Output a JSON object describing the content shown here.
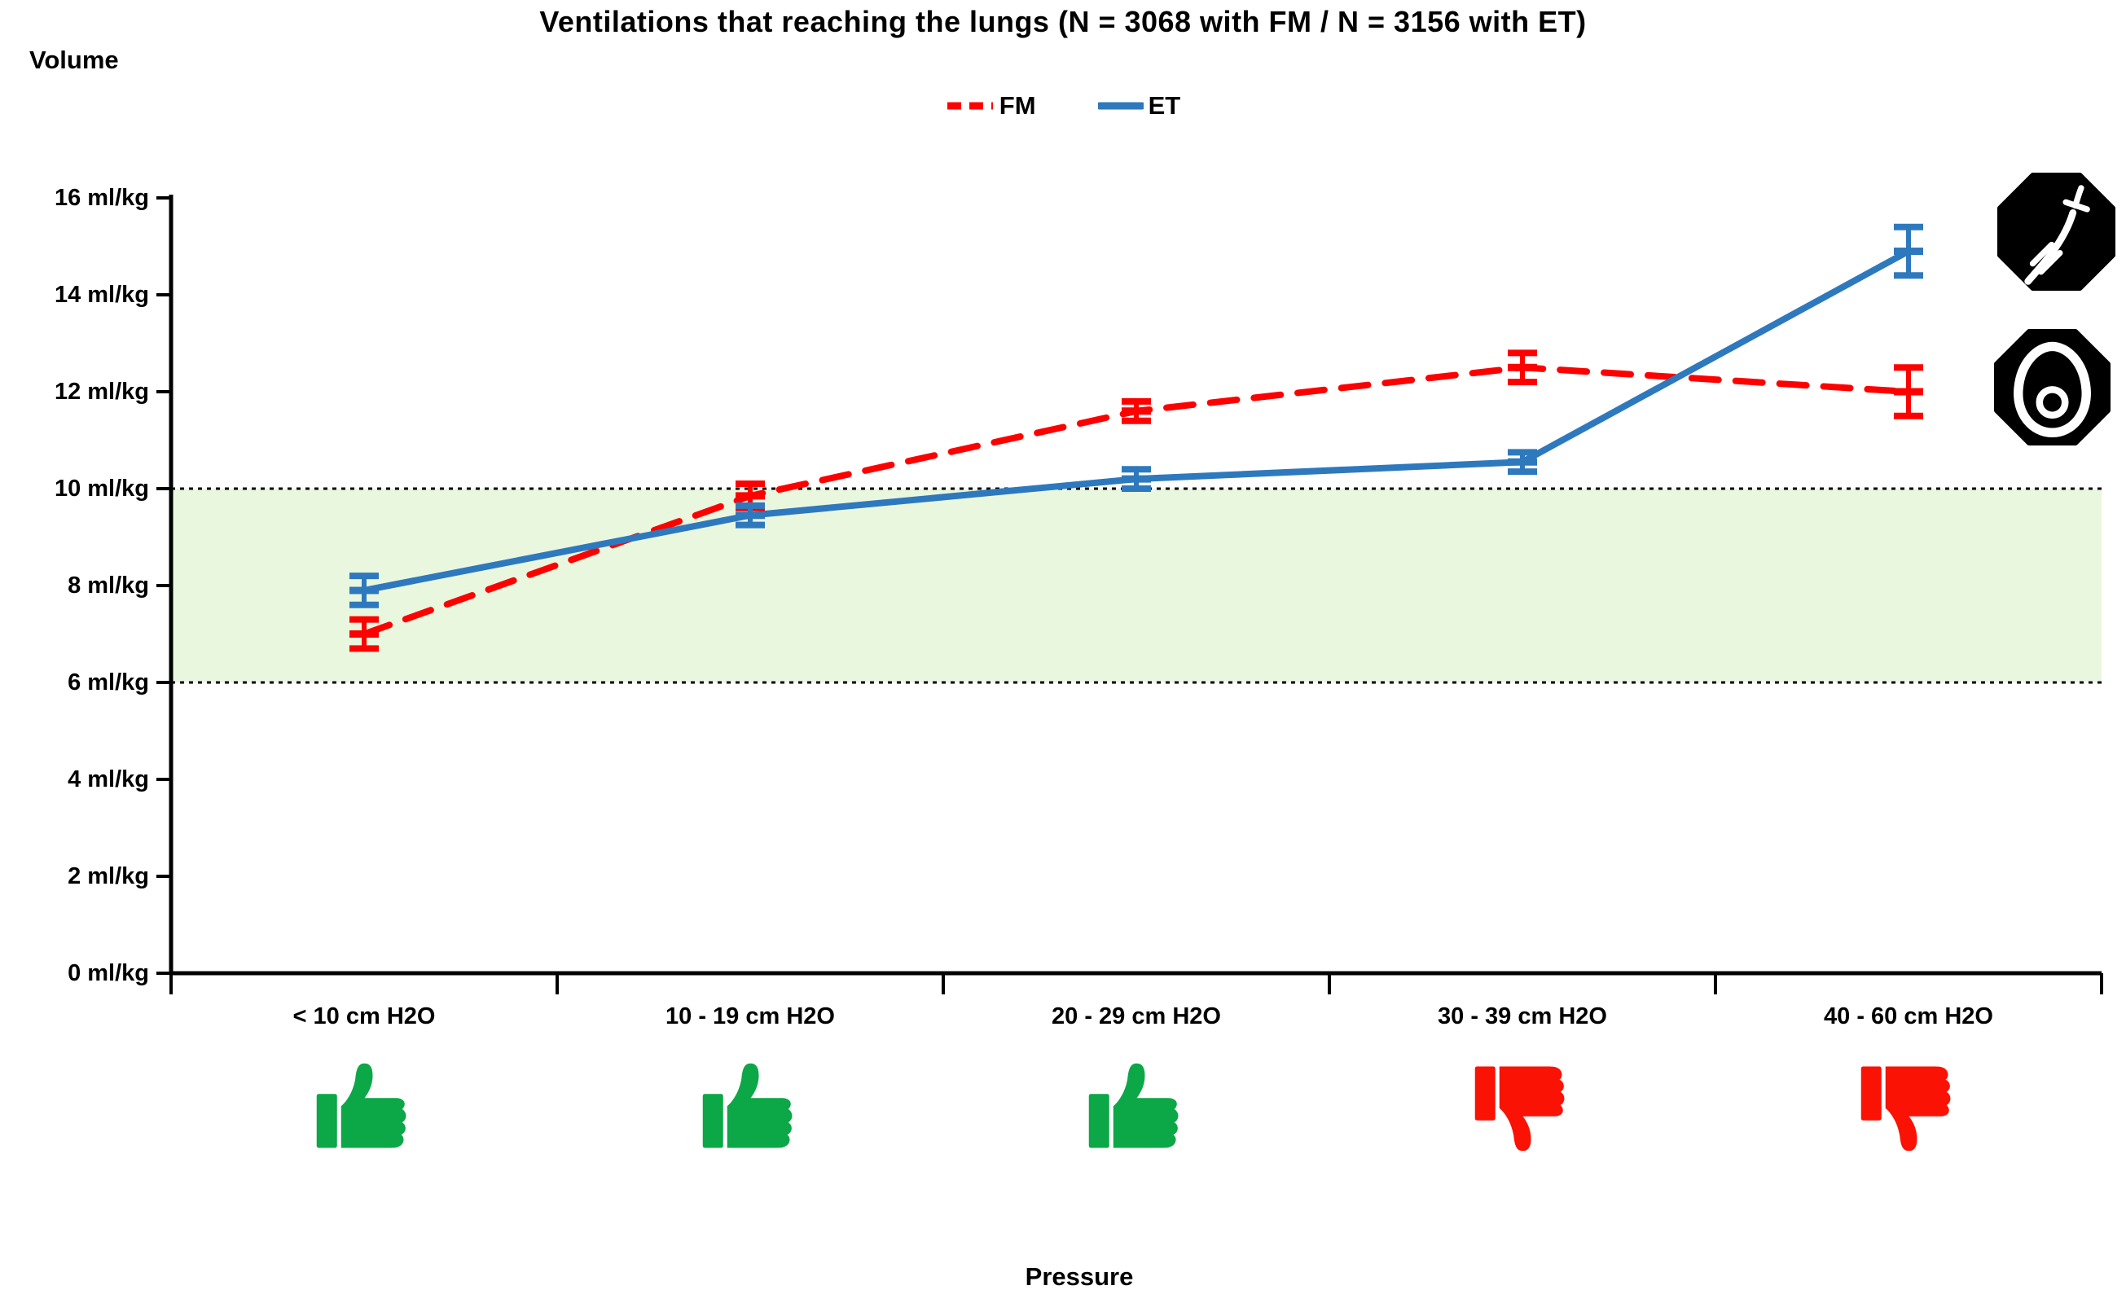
{
  "title": "Ventilations that reaching the lungs (N = 3068 with FM / N = 3156 with ET)",
  "legend": [
    {
      "label": "FM",
      "color": "#FF0000",
      "style": "dashed"
    },
    {
      "label": "ET",
      "color": "#2E79BD",
      "style": "solid"
    }
  ],
  "y_axis": {
    "label": "Volume",
    "tick_labels": [
      "0 ml/kg",
      "2 ml/kg",
      "4 ml/kg",
      "6 ml/kg",
      "8 ml/kg",
      "10 ml/kg",
      "12 ml/kg",
      "14 ml/kg",
      "16 ml/kg"
    ],
    "tick_values": [
      0,
      2,
      4,
      6,
      8,
      10,
      12,
      14,
      16
    ]
  },
  "x_axis": {
    "label": "Pressure",
    "categories": [
      "< 10 cm H2O",
      "10 - 19 cm H2O",
      "20 - 29 cm H2O",
      "30 - 39 cm H2O",
      "40 - 60 cm H2O"
    ]
  },
  "assessments": [
    {
      "category": "< 10 cm H2O",
      "icon": "thumbs-up",
      "color": "#0CA747"
    },
    {
      "category": "10 - 19 cm H2O",
      "icon": "thumbs-up",
      "color": "#0CA747"
    },
    {
      "category": "20 - 29 cm H2O",
      "icon": "thumbs-up",
      "color": "#0CA747"
    },
    {
      "category": "30 - 39 cm H2O",
      "icon": "thumbs-down",
      "color": "#FA1205"
    },
    {
      "category": "40 - 60 cm H2O",
      "icon": "thumbs-down",
      "color": "#FA1205"
    }
  ],
  "side_icons": [
    {
      "name": "endotracheal-tube",
      "series": "ET",
      "bg": "#000000",
      "fg": "#FFFFFF"
    },
    {
      "name": "face-mask",
      "series": "FM",
      "bg": "#000000",
      "fg": "#FFFFFF"
    }
  ],
  "colors": {
    "fm_red": "#FF0000",
    "et_blue": "#2E79BD",
    "band_green": "#EAF7DF",
    "axis_black": "#000000"
  },
  "chart_data": {
    "type": "line",
    "title": "Ventilations that reaching the lungs (N = 3068 with FM / N = 3156 with ET)",
    "xlabel": "Pressure",
    "ylabel": "Volume",
    "ylim": [
      0,
      16
    ],
    "y_tick_step": 2,
    "grid": false,
    "legend_position": "top-center",
    "categories": [
      "< 10 cm H2O",
      "10 - 19 cm H2O",
      "20 - 29 cm H2O",
      "30 - 39 cm H2O",
      "40 - 60 cm H2O"
    ],
    "series": [
      {
        "name": "FM",
        "color": "#FF0000",
        "line_style": "dashed",
        "values": [
          7.0,
          9.85,
          11.6,
          12.5,
          12.0
        ],
        "errors": [
          0.3,
          0.25,
          0.2,
          0.3,
          0.5
        ]
      },
      {
        "name": "ET",
        "color": "#2E79BD",
        "line_style": "solid",
        "values": [
          7.9,
          9.45,
          10.2,
          10.55,
          14.9
        ],
        "errors": [
          0.3,
          0.2,
          0.2,
          0.2,
          0.5
        ]
      }
    ],
    "reference_band": {
      "from": 6,
      "to": 10,
      "color": "#EAF7DF",
      "border": "dotted"
    }
  }
}
